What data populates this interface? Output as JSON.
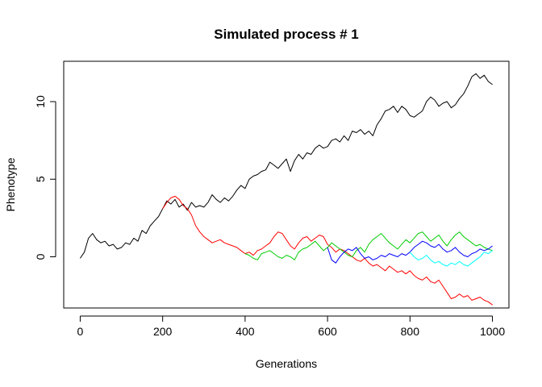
{
  "chart_data": {
    "type": "line",
    "title": "Simulated process # 1",
    "xlabel": "Generations",
    "ylabel": "Phenotype",
    "xlim": [
      -40,
      1040
    ],
    "ylim": [
      -3.3,
      12.6
    ],
    "xticks": [
      0,
      200,
      400,
      600,
      800,
      1000
    ],
    "xtick_labels": [
      "0",
      "200",
      "400",
      "600",
      "800",
      "1000"
    ],
    "yticks": [
      0,
      5,
      10
    ],
    "ytick_labels": [
      "0",
      "5",
      "10"
    ],
    "grid": false,
    "legend": "none",
    "series": [
      {
        "color": "#000000",
        "x": [
          0,
          10,
          20,
          30,
          40,
          50,
          60,
          70,
          80,
          90,
          100,
          110,
          120,
          130,
          140,
          150,
          160,
          170,
          180,
          190,
          200,
          210,
          220,
          230,
          240,
          250,
          260,
          270,
          280,
          290,
          300,
          310,
          320,
          330,
          340,
          350,
          360,
          370,
          380,
          390,
          400,
          410,
          420,
          430,
          440,
          450,
          460,
          470,
          480,
          490,
          500,
          510,
          520,
          530,
          540,
          550,
          560,
          570,
          580,
          590,
          600,
          610,
          620,
          630,
          640,
          650,
          660,
          670,
          680,
          690,
          700,
          710,
          720,
          730,
          740,
          750,
          760,
          770,
          780,
          790,
          800,
          810,
          820,
          830,
          840,
          850,
          860,
          870,
          880,
          890,
          900,
          910,
          920,
          930,
          940,
          950,
          960,
          970,
          980,
          990,
          1000
        ],
        "y": [
          -0.1,
          0.3,
          1.2,
          1.5,
          1.1,
          0.9,
          1.0,
          0.7,
          0.8,
          0.5,
          0.6,
          0.9,
          0.8,
          1.2,
          1.0,
          1.7,
          1.5,
          2.0,
          2.3,
          2.6,
          3.1,
          3.6,
          3.4,
          3.7,
          3.2,
          3.4,
          3.0,
          3.5,
          3.2,
          3.3,
          3.2,
          3.5,
          4.0,
          3.7,
          3.5,
          3.8,
          3.6,
          3.9,
          4.3,
          4.6,
          4.4,
          5.0,
          5.2,
          5.3,
          5.5,
          5.6,
          6.1,
          5.9,
          5.7,
          6.0,
          6.3,
          5.5,
          6.2,
          6.6,
          6.3,
          6.7,
          6.6,
          7.0,
          7.2,
          7.0,
          7.1,
          7.5,
          7.6,
          7.4,
          7.8,
          7.5,
          8.1,
          8.0,
          8.2,
          7.9,
          8.1,
          7.8,
          8.5,
          8.9,
          9.4,
          9.5,
          9.7,
          9.3,
          9.7,
          9.5,
          9.1,
          9.0,
          9.2,
          9.4,
          10.0,
          10.3,
          10.1,
          9.7,
          9.9,
          10.0,
          9.6,
          9.8,
          10.2,
          10.5,
          11.0,
          11.6,
          11.8,
          11.5,
          11.7,
          11.3,
          11.1
        ]
      },
      {
        "color": "#ff0000",
        "x": [
          200,
          210,
          220,
          230,
          240,
          250,
          260,
          270,
          280,
          290,
          300,
          310,
          320,
          330,
          340,
          350,
          360,
          370,
          380,
          390,
          400,
          410,
          420,
          430,
          440,
          450,
          460,
          470,
          480,
          490,
          500,
          510,
          520,
          530,
          540,
          550,
          560,
          570,
          580,
          590,
          600,
          610,
          620,
          630,
          640,
          650,
          660,
          670,
          680,
          690,
          700,
          710,
          720,
          730,
          740,
          750,
          760,
          770,
          780,
          790,
          800,
          810,
          820,
          830,
          840,
          850,
          860,
          870,
          880,
          890,
          900,
          910,
          920,
          930,
          940,
          950,
          960,
          970,
          980,
          990,
          1000
        ],
        "y": [
          3.1,
          3.5,
          3.8,
          3.9,
          3.7,
          3.3,
          3.1,
          2.7,
          2.0,
          1.6,
          1.3,
          1.1,
          0.9,
          1.0,
          1.1,
          0.9,
          0.8,
          0.7,
          0.6,
          0.4,
          0.2,
          0.3,
          0.1,
          0.4,
          0.5,
          0.7,
          0.9,
          1.3,
          1.6,
          1.5,
          1.1,
          0.7,
          0.5,
          0.9,
          1.2,
          1.3,
          1.0,
          1.2,
          1.4,
          1.3,
          0.8,
          0.6,
          0.3,
          0.5,
          0.4,
          0.2,
          0.0,
          -0.2,
          -0.3,
          -0.1,
          -0.4,
          -0.6,
          -0.5,
          -0.7,
          -0.9,
          -0.6,
          -0.8,
          -1.0,
          -0.9,
          -1.1,
          -0.9,
          -1.2,
          -1.4,
          -1.5,
          -1.3,
          -1.6,
          -1.7,
          -1.5,
          -1.9,
          -2.3,
          -2.7,
          -2.6,
          -2.4,
          -2.6,
          -2.5,
          -2.8,
          -2.7,
          -2.6,
          -2.8,
          -2.9,
          -3.1
        ]
      },
      {
        "color": "#00cd00",
        "x": [
          400,
          410,
          420,
          430,
          440,
          450,
          460,
          470,
          480,
          490,
          500,
          510,
          520,
          530,
          540,
          550,
          560,
          570,
          580,
          590,
          600,
          610,
          620,
          630,
          640,
          650,
          660,
          670,
          680,
          690,
          700,
          710,
          720,
          730,
          740,
          750,
          760,
          770,
          780,
          790,
          800,
          810,
          820,
          830,
          840,
          850,
          860,
          870,
          880,
          890,
          900,
          910,
          920,
          930,
          940,
          950,
          960,
          970,
          980,
          990,
          1000
        ],
        "y": [
          0.2,
          0.1,
          -0.1,
          -0.2,
          0.2,
          0.3,
          0.4,
          0.2,
          0.0,
          -0.1,
          0.1,
          0.0,
          -0.2,
          0.3,
          0.5,
          0.6,
          0.8,
          1.0,
          0.7,
          0.4,
          0.6,
          0.9,
          0.7,
          0.5,
          0.3,
          0.1,
          0.0,
          0.4,
          0.6,
          0.3,
          0.8,
          1.1,
          1.3,
          1.5,
          1.2,
          0.9,
          0.7,
          0.5,
          0.8,
          1.1,
          0.9,
          1.2,
          1.5,
          1.6,
          1.3,
          1.0,
          1.2,
          1.4,
          1.0,
          0.7,
          1.1,
          1.4,
          1.6,
          1.3,
          1.1,
          0.9,
          0.7,
          0.8,
          0.6,
          0.5,
          0.4
        ]
      },
      {
        "color": "#0000ff",
        "x": [
          600,
          610,
          620,
          630,
          640,
          650,
          660,
          670,
          680,
          690,
          700,
          710,
          720,
          730,
          740,
          750,
          760,
          770,
          780,
          790,
          800,
          810,
          820,
          830,
          840,
          850,
          860,
          870,
          880,
          890,
          900,
          910,
          920,
          930,
          940,
          950,
          960,
          970,
          980,
          990,
          1000
        ],
        "y": [
          0.6,
          -0.2,
          -0.4,
          0.0,
          0.3,
          0.5,
          0.4,
          0.6,
          0.2,
          -0.1,
          0.0,
          -0.2,
          -0.1,
          0.1,
          0.0,
          0.2,
          0.1,
          0.0,
          0.2,
          0.1,
          0.3,
          0.6,
          0.8,
          1.0,
          0.9,
          0.7,
          0.6,
          0.8,
          0.5,
          0.3,
          0.4,
          0.6,
          0.3,
          0.1,
          0.0,
          0.2,
          0.3,
          0.5,
          0.4,
          0.5,
          0.7
        ]
      },
      {
        "color": "#00ffff",
        "x": [
          800,
          810,
          820,
          830,
          840,
          850,
          860,
          870,
          880,
          890,
          900,
          910,
          920,
          930,
          940,
          950,
          960,
          970,
          980,
          990,
          1000
        ],
        "y": [
          0.3,
          0.0,
          -0.2,
          -0.1,
          0.1,
          -0.2,
          -0.4,
          -0.3,
          -0.5,
          -0.6,
          -0.4,
          -0.5,
          -0.3,
          -0.5,
          -0.6,
          -0.4,
          -0.2,
          0.0,
          0.3,
          0.2,
          0.4
        ]
      }
    ]
  }
}
